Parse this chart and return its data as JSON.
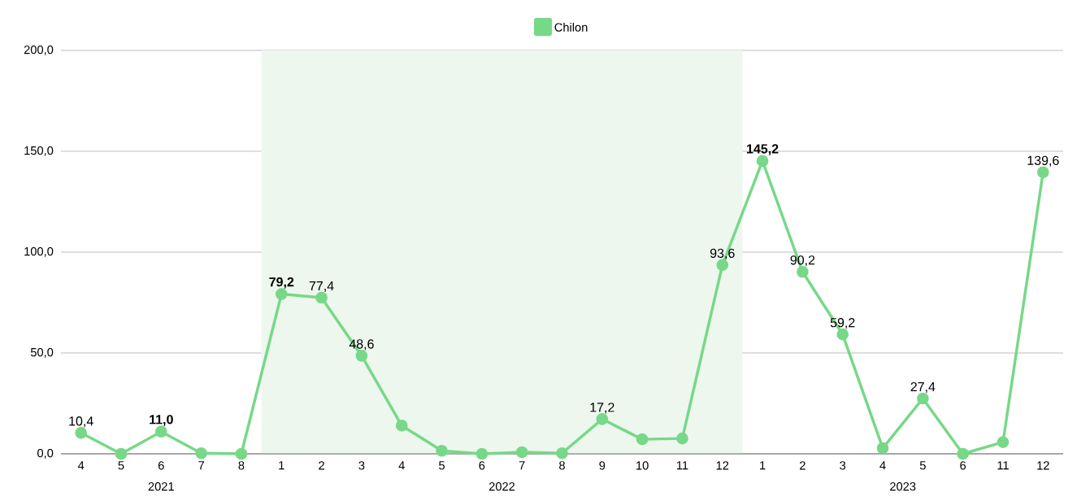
{
  "chart_data": {
    "type": "line",
    "categories": [
      "4",
      "5",
      "6",
      "7",
      "8",
      "1",
      "2",
      "3",
      "4",
      "5",
      "6",
      "7",
      "8",
      "9",
      "10",
      "11",
      "12",
      "1",
      "2",
      "3",
      "4",
      "5",
      "6",
      "11",
      "12"
    ],
    "series": [
      {
        "name": "Chilon",
        "color": "#77d888",
        "values": [
          10.4,
          0,
          11.0,
          0.3,
          0,
          79.2,
          77.4,
          48.6,
          14,
          1.5,
          0,
          0.8,
          0.3,
          17.2,
          7.2,
          7.6,
          93.6,
          145.2,
          90.2,
          59.2,
          2.8,
          27.4,
          0,
          5.8,
          139.6
        ],
        "value_labels": [
          "10,4",
          null,
          "**11,0**",
          null,
          null,
          "**79,2**",
          "77,4",
          "48,6",
          null,
          null,
          null,
          null,
          null,
          "17,2",
          null,
          null,
          "93,6",
          "**145,2**",
          "90,2",
          "59,2",
          null,
          "27,4",
          null,
          null,
          "139,6"
        ]
      }
    ],
    "ylim": [
      0,
      200
    ],
    "yticks": [
      {
        "value": 0,
        "label": "0,0"
      },
      {
        "value": 50,
        "label": "50,0"
      },
      {
        "value": 100,
        "label": "100,0"
      },
      {
        "value": 150,
        "label": "150,0"
      },
      {
        "value": 200,
        "label": "200,0"
      }
    ],
    "bands": [
      {
        "axis": "x",
        "from": "1",
        "to": "12",
        "color": "#edf7ee"
      }
    ],
    "annotations": [
      "2021",
      "2022",
      "2023"
    ],
    "grid": "y",
    "legend": "top",
    "marker": "circle",
    "line_style": "solid"
  }
}
